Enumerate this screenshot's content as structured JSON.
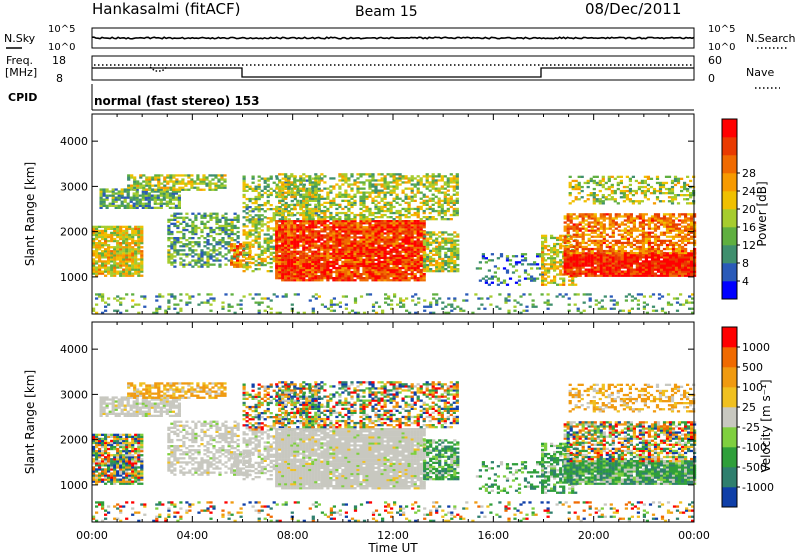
{
  "header": {
    "station": "Hankasalmi (fitACF)",
    "beam": "Beam 15",
    "date": "08/Dec/2011"
  },
  "noise_panel": {
    "left_label": "N.Sky",
    "right_label": "N.Search",
    "left_ticks": [
      "10^5",
      "10^0"
    ],
    "right_ticks": [
      "10^5",
      "10^0"
    ]
  },
  "freq_panel": {
    "left_label_1": "Freq.",
    "left_label_2": "[MHz]",
    "left_ticks": [
      "18",
      "8"
    ],
    "right_label": "Nave",
    "right_ticks": [
      "60",
      "0"
    ]
  },
  "cpid_panel": {
    "label": "CPID",
    "text": "normal (fast stereo) 153"
  },
  "chart_data": [
    {
      "type": "heatmap",
      "panel": "power",
      "xlabel": "Time UT",
      "ylabel": "Slant Range [km]",
      "xticks": [
        "00:00",
        "04:00",
        "08:00",
        "12:00",
        "16:00",
        "20:00",
        "00:00"
      ],
      "xlim": [
        0,
        24
      ],
      "ylim": [
        180,
        4600
      ],
      "yticks": [
        "1000",
        "2000",
        "3000",
        "4000"
      ],
      "colorbar": {
        "label": "Power [dB]",
        "ticks": [
          "4",
          "8",
          "12",
          "16",
          "20",
          "24",
          "28"
        ],
        "colors": [
          "#0000ff",
          "#2a5ab8",
          "#3f8f6e",
          "#5faf40",
          "#a6cc2e",
          "#f0c000",
          "#f79a00",
          "#f06a00",
          "#e93a00",
          "#ff0000"
        ]
      }
    },
    {
      "type": "heatmap",
      "panel": "velocity",
      "xlabel": "Time UT",
      "ylabel": "Slant Range [km]",
      "xticks": [
        "00:00",
        "04:00",
        "08:00",
        "12:00",
        "16:00",
        "20:00",
        "00:00"
      ],
      "xlim": [
        0,
        24
      ],
      "ylim": [
        180,
        4600
      ],
      "yticks": [
        "1000",
        "2000",
        "3000",
        "4000"
      ],
      "colorbar": {
        "label": "Velocity [m s⁻¹]",
        "ticks": [
          "1000",
          "500",
          "100",
          "25",
          "-25",
          "-100",
          "-500",
          "-1000"
        ],
        "colors": [
          "#0f3fa8",
          "#2f7f6e",
          "#2f9f3a",
          "#7fcf3f",
          "#c8c8c0",
          "#f0c020",
          "#f09a10",
          "#f06a00",
          "#ff0000"
        ]
      }
    }
  ]
}
